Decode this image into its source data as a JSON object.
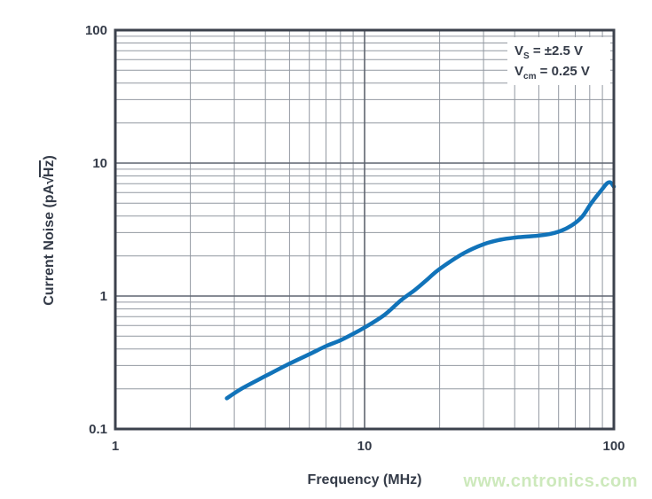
{
  "chart_data": {
    "type": "line",
    "title": "",
    "xlabel": "Frequency (MHz)",
    "ylabel": "Current Noise (pA√Hz)",
    "ylabel_parts": {
      "prefix": "Current Noise (pA",
      "radical": "√",
      "radicand": "Hz",
      "suffix": ")"
    },
    "x_scale": "log",
    "y_scale": "log",
    "xlim": [
      1,
      100
    ],
    "ylim": [
      0.1,
      100
    ],
    "grid": "log major + minor gridlines, both axes",
    "legend_position": "top-right inside plot",
    "x_ticks": [
      {
        "value": 1,
        "label": "1"
      },
      {
        "value": 10,
        "label": "10"
      },
      {
        "value": 100,
        "label": "100"
      }
    ],
    "y_ticks": [
      {
        "value": 100,
        "label": "100"
      },
      {
        "value": 10,
        "label": "10"
      },
      {
        "value": 1,
        "label": "1"
      },
      {
        "value": 0.1,
        "label": "0.1"
      }
    ],
    "annotation": {
      "lines": [
        {
          "base": "V",
          "sub": "S",
          "rest": " = ±2.5 V"
        },
        {
          "base": "V",
          "sub": "cm",
          "rest": " = 0.25 V"
        }
      ]
    },
    "series": [
      {
        "name": "current-noise",
        "color": "#1173b9",
        "points": [
          [
            2.8,
            0.17
          ],
          [
            3.2,
            0.2
          ],
          [
            4,
            0.25
          ],
          [
            5,
            0.31
          ],
          [
            6,
            0.365
          ],
          [
            7,
            0.42
          ],
          [
            8,
            0.465
          ],
          [
            9,
            0.52
          ],
          [
            10,
            0.58
          ],
          [
            12,
            0.72
          ],
          [
            14,
            0.93
          ],
          [
            16,
            1.12
          ],
          [
            18,
            1.35
          ],
          [
            20,
            1.6
          ],
          [
            25,
            2.1
          ],
          [
            30,
            2.45
          ],
          [
            35,
            2.65
          ],
          [
            40,
            2.75
          ],
          [
            45,
            2.8
          ],
          [
            50,
            2.85
          ],
          [
            55,
            2.92
          ],
          [
            60,
            3.05
          ],
          [
            65,
            3.25
          ],
          [
            70,
            3.55
          ],
          [
            75,
            4.0
          ],
          [
            80,
            4.8
          ],
          [
            85,
            5.6
          ],
          [
            90,
            6.4
          ],
          [
            94,
            7.05
          ],
          [
            97,
            7.15
          ],
          [
            100,
            6.65
          ]
        ]
      }
    ]
  },
  "colors": {
    "text": "#343b48",
    "frame": "#3c424d",
    "grid_minor": "#9298a1",
    "grid_major": "#5f6570",
    "curve": "#1173b9",
    "watermark": "#cde9bc"
  },
  "watermark": {
    "text": "www.cntronics.com"
  }
}
